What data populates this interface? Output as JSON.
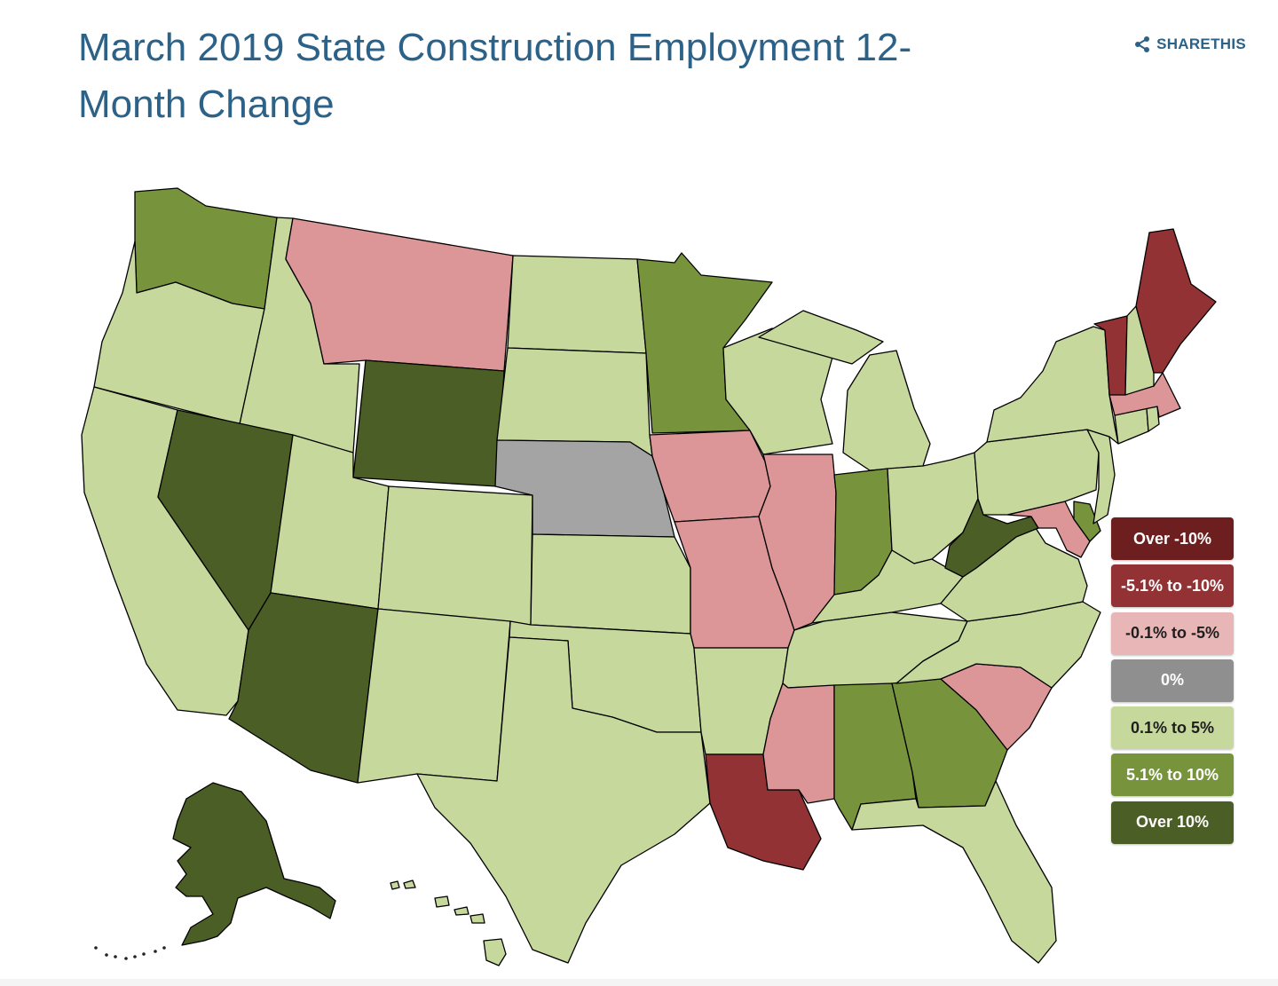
{
  "title": "March 2019 State Construction Employment 12-Month Change",
  "share_label": "SHARETHIS",
  "palette": {
    "over_neg10": "#6d1f1f",
    "neg5_to_neg10": "#923234",
    "neg01_to_neg5": "#dc9697",
    "zero": "#a4a4a4",
    "p01_to_5": "#c7d89d",
    "p51_to_10": "#77943d",
    "over10": "#4b5e26"
  },
  "legend": [
    {
      "label": "Over -10%",
      "key": "over_neg10",
      "color": "#6d1f1f",
      "text_color": "#ffffff"
    },
    {
      "label": "-5.1% to -10%",
      "key": "neg5_to_neg10",
      "color": "#923234",
      "text_color": "#ffffff"
    },
    {
      "label": "-0.1% to -5%",
      "key": "neg01_to_neg5",
      "color": "#e8b6b7",
      "text_color": "#1e1e1e"
    },
    {
      "label": "0%",
      "key": "zero",
      "color": "#8f8f8f",
      "text_color": "#ffffff"
    },
    {
      "label": "0.1% to 5%",
      "key": "p01_to_5",
      "color": "#c7d89d",
      "text_color": "#1e1e1e"
    },
    {
      "label": "5.1% to 10%",
      "key": "p51_to_10",
      "color": "#77943d",
      "text_color": "#ffffff"
    },
    {
      "label": "Over 10%",
      "key": "over10",
      "color": "#4b5e26",
      "text_color": "#ffffff"
    }
  ],
  "states": {
    "WA": "p51_to_10",
    "OR": "p01_to_5",
    "CA": "p01_to_5",
    "ID": "p01_to_5",
    "NV": "over10",
    "MT": "neg01_to_neg5",
    "WY": "over10",
    "UT": "p01_to_5",
    "AZ": "over10",
    "CO": "p01_to_5",
    "NM": "p01_to_5",
    "ND": "p01_to_5",
    "SD": "p01_to_5",
    "NE": "zero",
    "KS": "p01_to_5",
    "OK": "p01_to_5",
    "TX": "p01_to_5",
    "MN": "p51_to_10",
    "IA": "neg01_to_neg5",
    "MO": "neg01_to_neg5",
    "AR": "p01_to_5",
    "LA": "neg5_to_neg10",
    "WI": "p01_to_5",
    "IL": "neg01_to_neg5",
    "MI": "p01_to_5",
    "IN": "p51_to_10",
    "OH": "p01_to_5",
    "KY": "p01_to_5",
    "TN": "p01_to_5",
    "MS": "neg01_to_neg5",
    "AL": "p51_to_10",
    "GA": "p51_to_10",
    "FL": "p01_to_5",
    "SC": "neg01_to_neg5",
    "NC": "p01_to_5",
    "VA": "p01_to_5",
    "WV": "over10",
    "MD": "neg01_to_neg5",
    "DE": "p51_to_10",
    "PA": "p01_to_5",
    "NJ": "p01_to_5",
    "NY": "p01_to_5",
    "CT": "p01_to_5",
    "RI": "p01_to_5",
    "MA": "neg01_to_neg5",
    "VT": "neg5_to_neg10",
    "NH": "p01_to_5",
    "ME": "neg5_to_neg10",
    "AK": "over10",
    "HI": "p01_to_5"
  }
}
